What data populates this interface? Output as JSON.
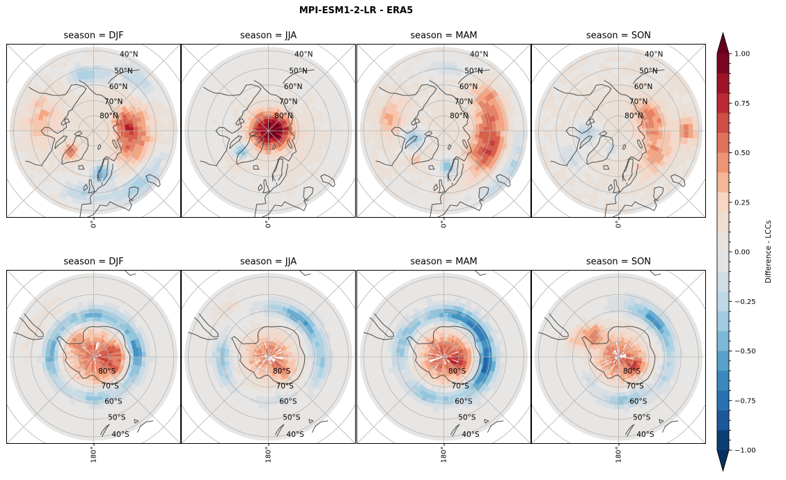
{
  "figure": {
    "title": "MPI-ESM1-2-LR - ERA5"
  },
  "colorbar": {
    "label": "Difference - LCCs",
    "vmin": -1.0,
    "vmax": 1.0,
    "extend": "both",
    "bin_width": 0.1,
    "minor_tick_step": 0.05,
    "ticks": [
      {
        "v": 1.0,
        "label": "1.00"
      },
      {
        "v": 0.75,
        "label": "0.75"
      },
      {
        "v": 0.5,
        "label": "0.50"
      },
      {
        "v": 0.25,
        "label": "0.25"
      },
      {
        "v": 0.0,
        "label": "0.00"
      },
      {
        "v": -0.25,
        "label": "−0.25"
      },
      {
        "v": -0.5,
        "label": "−0.50"
      },
      {
        "v": -0.75,
        "label": "−0.75"
      },
      {
        "v": -1.0,
        "label": "−1.00"
      }
    ]
  },
  "chart_data": {
    "type": "heatmap",
    "subtype": "faceted_polar_stereographic_difference_maps",
    "title": "MPI-ESM1-2-LR - ERA5",
    "value_label": "Difference - LCCs",
    "value_range": [
      -1,
      1
    ],
    "columns": [
      "DJF",
      "JJA",
      "MAM",
      "SON"
    ],
    "rows": [
      {
        "projection": "north_polar_stereographic",
        "lat_extent": [
          38,
          90
        ],
        "bottom_meridian_label": "0°"
      },
      {
        "projection": "south_polar_stereographic",
        "lat_extent": [
          -90,
          -38
        ],
        "bottom_meridian_label": "180°"
      }
    ],
    "graticule": {
      "lat_circles_deg": [
        30,
        40,
        50,
        60,
        70,
        80
      ],
      "meridian_step_deg": 45
    },
    "colormap": {
      "name": "RdBu_r-like, discrete 0.1 bins",
      "stops": [
        [
          -1.0,
          5,
          48,
          97
        ],
        [
          -0.8,
          33,
          102,
          172
        ],
        [
          -0.6,
          67,
          147,
          195
        ],
        [
          -0.4,
          146,
          197,
          222
        ],
        [
          -0.25,
          190,
          216,
          230
        ],
        [
          -0.1,
          218,
          223,
          228
        ],
        [
          0.0,
          232,
          230,
          228
        ],
        [
          0.1,
          234,
          224,
          216
        ],
        [
          0.25,
          248,
          214,
          196
        ],
        [
          0.4,
          244,
          165,
          130
        ],
        [
          0.6,
          214,
          96,
          77
        ],
        [
          0.8,
          178,
          24,
          43
        ],
        [
          1.0,
          103,
          0,
          31
        ]
      ]
    },
    "panels": [
      {
        "row": 0,
        "col": 0,
        "hemisphere": "north",
        "season": "DJF",
        "title": "season = DJF",
        "xtick": "0°",
        "lat_labels": [
          "80°N",
          "70°N",
          "60°N",
          "50°N",
          "40°N"
        ],
        "lat_label_values": [
          80,
          70,
          60,
          50,
          40
        ],
        "seed": 1,
        "nodata": null,
        "pattern_blobs": [
          {
            "lat": 90,
            "lon": 0,
            "slat": 50,
            "slon": 999,
            "amp": 0.1
          },
          {
            "lat": 63,
            "lon": 80,
            "slat": 11,
            "slon": 38,
            "amp": 0.5
          },
          {
            "lat": 70,
            "lon": 105,
            "slat": 8,
            "slon": 25,
            "amp": 0.35
          },
          {
            "lat": 55,
            "lon": -100,
            "slat": 10,
            "slon": 28,
            "amp": 0.28
          },
          {
            "lat": 70,
            "lon": -48,
            "slat": 5,
            "slon": 13,
            "amp": 0.5
          },
          {
            "lat": 62,
            "lon": 12,
            "slat": 6,
            "slon": 16,
            "amp": -0.55
          },
          {
            "lat": 46,
            "lon": 40,
            "slat": 6,
            "slon": 28,
            "amp": -0.4
          },
          {
            "lat": 50,
            "lon": -10,
            "slat": 6,
            "slon": 18,
            "amp": -0.3
          },
          {
            "lat": 54,
            "lon": 185,
            "slat": 6,
            "slon": 22,
            "amp": -0.35
          },
          {
            "lat": 47,
            "lon": 140,
            "slat": 6,
            "slon": 18,
            "amp": -0.3
          }
        ]
      },
      {
        "row": 0,
        "col": 1,
        "hemisphere": "north",
        "season": "JJA",
        "title": "season = JJA",
        "xtick": "0°",
        "lat_labels": [
          "80°N",
          "70°N",
          "60°N",
          "50°N",
          "40°N"
        ],
        "lat_label_values": [
          80,
          70,
          60,
          50,
          40
        ],
        "seed": 2,
        "nodata": null,
        "pattern_blobs": [
          {
            "lat": 90,
            "lon": 0,
            "slat": 40,
            "slon": 999,
            "amp": 0.04
          },
          {
            "lat": 88,
            "lon": 0,
            "slat": 11,
            "slon": 999,
            "amp": 0.85
          },
          {
            "lat": 80,
            "lon": 90,
            "slat": 8,
            "slon": 50,
            "amp": 0.3
          },
          {
            "lat": 62,
            "lon": 60,
            "slat": 10,
            "slon": 50,
            "amp": 0.1
          },
          {
            "lat": 68,
            "lon": -52,
            "slat": 6,
            "slon": 11,
            "amp": -0.5
          },
          {
            "lat": 60,
            "lon": -45,
            "slat": 5,
            "slon": 10,
            "amp": 0.2
          }
        ]
      },
      {
        "row": 0,
        "col": 2,
        "hemisphere": "north",
        "season": "MAM",
        "title": "season = MAM",
        "xtick": "0°",
        "lat_labels": [
          "80°N",
          "70°N",
          "60°N",
          "50°N",
          "40°N"
        ],
        "lat_label_values": [
          80,
          70,
          60,
          50,
          40
        ],
        "seed": 3,
        "nodata": null,
        "pattern_blobs": [
          {
            "lat": 90,
            "lon": 0,
            "slat": 50,
            "slon": 999,
            "amp": 0.08
          },
          {
            "lat": 60,
            "lon": 75,
            "slat": 11,
            "slon": 42,
            "amp": 0.62
          },
          {
            "lat": 55,
            "lon": 125,
            "slat": 8,
            "slon": 22,
            "amp": 0.35
          },
          {
            "lat": 55,
            "lon": -105,
            "slat": 9,
            "slon": 25,
            "amp": 0.3
          },
          {
            "lat": 66,
            "lon": 8,
            "slat": 6,
            "slon": 14,
            "amp": -0.5
          },
          {
            "lat": 70,
            "lon": -75,
            "slat": 7,
            "slon": 18,
            "amp": -0.45
          },
          {
            "lat": 43,
            "lon": 60,
            "slat": 5,
            "slon": 35,
            "amp": -0.3
          },
          {
            "lat": 50,
            "lon": 175,
            "slat": 5,
            "slon": 20,
            "amp": -0.2
          },
          {
            "lat": 62,
            "lon": -45,
            "slat": 4,
            "slon": 8,
            "amp": 0.35
          }
        ]
      },
      {
        "row": 0,
        "col": 3,
        "hemisphere": "north",
        "season": "SON",
        "title": "season = SON",
        "xtick": "0°",
        "lat_labels": [
          "80°N",
          "70°N",
          "60°N",
          "50°N",
          "40°N"
        ],
        "lat_label_values": [
          80,
          70,
          60,
          50,
          40
        ],
        "seed": 4,
        "nodata": null,
        "pattern_blobs": [
          {
            "lat": 90,
            "lon": 0,
            "slat": 55,
            "slon": 999,
            "amp": 0.1
          },
          {
            "lat": 68,
            "lon": 105,
            "slat": 9,
            "slon": 40,
            "amp": 0.45
          },
          {
            "lat": 60,
            "lon": 55,
            "slat": 8,
            "slon": 25,
            "amp": 0.3
          },
          {
            "lat": 47,
            "lon": 90,
            "slat": 5,
            "slon": 12,
            "amp": 0.5
          },
          {
            "lat": 70,
            "lon": -85,
            "slat": 8,
            "slon": 22,
            "amp": -0.35
          },
          {
            "lat": 77,
            "lon": -20,
            "slat": 5,
            "slon": 18,
            "amp": -0.3
          },
          {
            "lat": 55,
            "lon": -60,
            "slat": 6,
            "slon": 15,
            "amp": -0.25
          }
        ]
      },
      {
        "row": 1,
        "col": 0,
        "hemisphere": "south",
        "season": "DJF",
        "title": "season = DJF",
        "xtick": "180°",
        "lat_labels": [
          "80°S",
          "70°S",
          "60°S",
          "50°S",
          "40°S"
        ],
        "lat_label_values": [
          -80,
          -70,
          -60,
          -50,
          -40
        ],
        "seed": 5,
        "nodata": {
          "p88": 0.5,
          "p85": 0.3,
          "p80": 0.1
        },
        "pattern_blobs": [
          {
            "lat": -90,
            "lon": 0,
            "slat": 18,
            "slon": 999,
            "amp": 0.55
          },
          {
            "lat": -75,
            "lon": 100,
            "slat": 8,
            "slon": 45,
            "amp": 0.35
          },
          {
            "lat": -72,
            "lon": -45,
            "slat": 6,
            "slon": 25,
            "amp": 0.2
          },
          {
            "lat": -63,
            "lon": 0,
            "slat": 5.5,
            "slon": 60,
            "amp": -0.5
          },
          {
            "lat": -62,
            "lon": 90,
            "slat": 5.5,
            "slon": 45,
            "amp": -0.55
          },
          {
            "lat": -64,
            "lon": 180,
            "slat": 5,
            "slon": 40,
            "amp": -0.4
          },
          {
            "lat": -62,
            "lon": -90,
            "slat": 5,
            "slon": 40,
            "amp": -0.45
          },
          {
            "lat": -48,
            "lon": -60,
            "slat": 6,
            "slon": 30,
            "amp": 0.1
          }
        ]
      },
      {
        "row": 1,
        "col": 1,
        "hemisphere": "south",
        "season": "JJA",
        "title": "season = JJA",
        "xtick": "180°",
        "lat_labels": [
          "80°S",
          "70°S",
          "60°S",
          "50°S",
          "40°S"
        ],
        "lat_label_values": [
          -80,
          -70,
          -60,
          -50,
          -40
        ],
        "seed": 6,
        "nodata": {
          "p88": 0.6,
          "p85": 0.4,
          "p80": 0.15
        },
        "pattern_blobs": [
          {
            "lat": -90,
            "lon": 0,
            "slat": 16,
            "slon": 999,
            "amp": 0.5
          },
          {
            "lat": -76,
            "lon": 130,
            "slat": 7,
            "slon": 30,
            "amp": 0.25
          },
          {
            "lat": -58,
            "lon": 40,
            "slat": 5,
            "slon": 45,
            "amp": -0.5
          },
          {
            "lat": -60,
            "lon": -95,
            "slat": 5,
            "slon": 30,
            "amp": -0.4
          },
          {
            "lat": -55,
            "lon": 100,
            "slat": 4,
            "slon": 25,
            "amp": -0.3
          },
          {
            "lat": -62,
            "lon": 170,
            "slat": 4,
            "slon": 25,
            "amp": -0.2
          },
          {
            "lat": -50,
            "lon": -40,
            "slat": 5,
            "slon": 15,
            "amp": 0.15
          }
        ]
      },
      {
        "row": 1,
        "col": 2,
        "hemisphere": "south",
        "season": "MAM",
        "title": "season = MAM",
        "xtick": "180°",
        "lat_labels": [
          "80°S",
          "70°S",
          "60°S",
          "50°S",
          "40°S"
        ],
        "lat_label_values": [
          -80,
          -70,
          -60,
          -50,
          -40
        ],
        "seed": 7,
        "nodata": {
          "p88": 0.55,
          "p85": 0.3,
          "p80": 0.1
        },
        "pattern_blobs": [
          {
            "lat": -90,
            "lon": 0,
            "slat": 17,
            "slon": 999,
            "amp": 0.6
          },
          {
            "lat": -78,
            "lon": 100,
            "slat": 8,
            "slon": 40,
            "amp": 0.3
          },
          {
            "lat": -62,
            "lon": 30,
            "slat": 6,
            "slon": 55,
            "amp": -0.65
          },
          {
            "lat": -62,
            "lon": 110,
            "slat": 6,
            "slon": 45,
            "amp": -0.65
          },
          {
            "lat": -63,
            "lon": -160,
            "slat": 5,
            "slon": 35,
            "amp": -0.45
          },
          {
            "lat": -62,
            "lon": -70,
            "slat": 5,
            "slon": 35,
            "amp": -0.5
          }
        ]
      },
      {
        "row": 1,
        "col": 3,
        "hemisphere": "south",
        "season": "SON",
        "title": "season = SON",
        "xtick": "180°",
        "lat_labels": [
          "80°S",
          "70°S",
          "60°S",
          "50°S",
          "40°S"
        ],
        "lat_label_values": [
          -80,
          -70,
          -60,
          -50,
          -40
        ],
        "seed": 8,
        "nodata": {
          "p88": 0.6,
          "p85": 0.35,
          "p80": 0.12
        },
        "pattern_blobs": [
          {
            "lat": -90,
            "lon": 0,
            "slat": 16,
            "slon": 999,
            "amp": 0.55
          },
          {
            "lat": -77,
            "lon": 120,
            "slat": 7,
            "slon": 35,
            "amp": 0.3
          },
          {
            "lat": -68,
            "lon": -50,
            "slat": 7,
            "slon": 22,
            "amp": 0.4
          },
          {
            "lat": -60,
            "lon": -65,
            "slat": 5,
            "slon": 18,
            "amp": 0.25
          },
          {
            "lat": -57,
            "lon": 45,
            "slat": 5,
            "slon": 40,
            "amp": -0.55
          },
          {
            "lat": -62,
            "lon": 170,
            "slat": 5,
            "slon": 35,
            "amp": -0.4
          },
          {
            "lat": -57,
            "lon": 110,
            "slat": 4,
            "slon": 20,
            "amp": -0.25
          },
          {
            "lat": -66,
            "lon": -130,
            "slat": 4,
            "slon": 20,
            "amp": -0.2
          }
        ]
      }
    ]
  }
}
